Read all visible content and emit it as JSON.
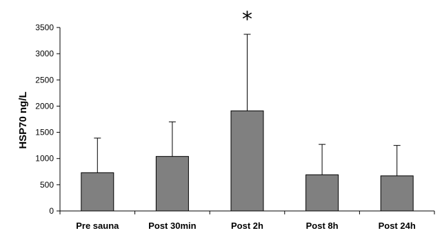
{
  "chart_data": {
    "type": "bar",
    "categories": [
      "Pre sauna",
      "Post 30min",
      "Post 2h",
      "Post 8h",
      "Post 24h"
    ],
    "values": [
      730,
      1040,
      1910,
      690,
      670
    ],
    "error_upper": [
      1390,
      1700,
      3370,
      1270,
      1250
    ],
    "annotations": [
      {
        "category": "Post 2h",
        "text": "*"
      }
    ],
    "ylabel": "HSP70   ng/L",
    "ylim": [
      0,
      3500
    ],
    "yticks": [
      0,
      500,
      1000,
      1500,
      2000,
      2500,
      3000,
      3500
    ],
    "grid": false,
    "colors": {
      "bar": "#808080",
      "outline": "#000000"
    }
  }
}
